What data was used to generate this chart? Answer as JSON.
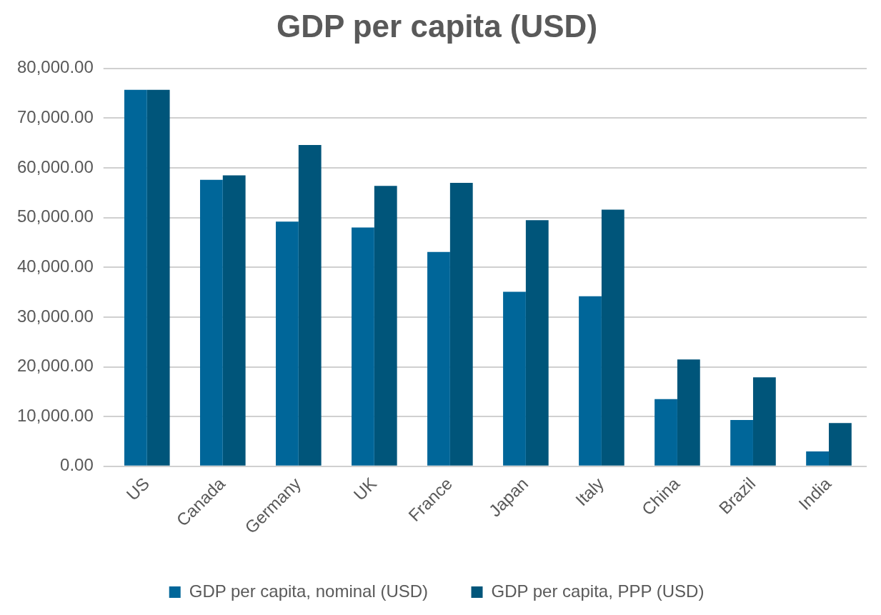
{
  "chart_data": {
    "type": "bar",
    "title": "GDP per capita (USD)",
    "categories": [
      "US",
      "Canada",
      "Germany",
      "UK",
      "France",
      "Japan",
      "Italy",
      "China",
      "Brazil",
      "India"
    ],
    "series": [
      {
        "name": "GDP per capita, nominal (USD)",
        "color": "#006699",
        "values": [
          75700,
          57600,
          49200,
          48000,
          43100,
          35100,
          34200,
          13500,
          9300,
          3000
        ]
      },
      {
        "name": "GDP per capita, PPP (USD)",
        "color": "#00557a",
        "values": [
          75700,
          58500,
          64600,
          56400,
          57000,
          49500,
          51600,
          21500,
          17900,
          8700
        ]
      }
    ],
    "ylim": [
      0,
      80000
    ],
    "yticks": [
      {
        "value": 0,
        "label": "0.00"
      },
      {
        "value": 10000,
        "label": "10,000.00"
      },
      {
        "value": 20000,
        "label": "20,000.00"
      },
      {
        "value": 30000,
        "label": "30,000.00"
      },
      {
        "value": 40000,
        "label": "40,000.00"
      },
      {
        "value": 50000,
        "label": "50,000.00"
      },
      {
        "value": 60000,
        "label": "60,000.00"
      },
      {
        "value": 70000,
        "label": "70,000.00"
      },
      {
        "value": 80000,
        "label": "80,000.00"
      }
    ],
    "grid": "y",
    "legend": "bottom"
  }
}
